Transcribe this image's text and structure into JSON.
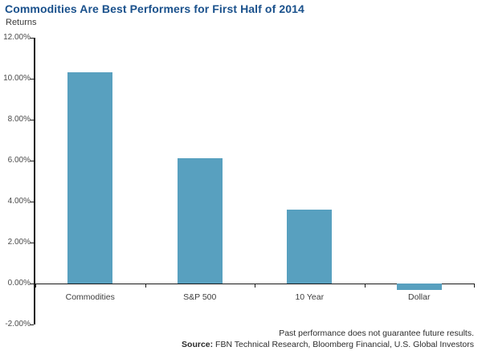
{
  "header": {
    "title": "Commodities Are Best Performers for First Half of 2014",
    "subtitle": "Returns"
  },
  "chart_data": {
    "type": "bar",
    "title": "Commodities Are Best Performers for First Half of 2014",
    "ylabel": "Returns",
    "xlabel": "",
    "categories": [
      "Commodities",
      "S&P 500",
      "10 Year",
      "Dollar"
    ],
    "values": [
      10.3,
      6.1,
      3.6,
      -0.3
    ],
    "ylim": [
      -2,
      12
    ],
    "y_ticks": [
      {
        "value": 12,
        "label": "12.00%"
      },
      {
        "value": 10,
        "label": "10.00%"
      },
      {
        "value": 8,
        "label": "8.00%"
      },
      {
        "value": 6,
        "label": "6.00%"
      },
      {
        "value": 4,
        "label": "4.00%"
      },
      {
        "value": 2,
        "label": "2.00%"
      },
      {
        "value": 0,
        "label": "0.00%"
      },
      {
        "value": -2,
        "label": "-2.00%"
      }
    ],
    "grid": false,
    "legend": "none",
    "bar_color": "#58A0BF"
  },
  "footer": {
    "disclaimer": "Past performance does not guarantee future results.",
    "source_label": "Source:",
    "source_text": "FBN Technical Research, Bloomberg Financial, U.S. Global Investors"
  },
  "colors": {
    "title": "#1A518C",
    "bar": "#58A0BF",
    "axis": "#1a1a1a",
    "text": "#3d3d3d"
  }
}
